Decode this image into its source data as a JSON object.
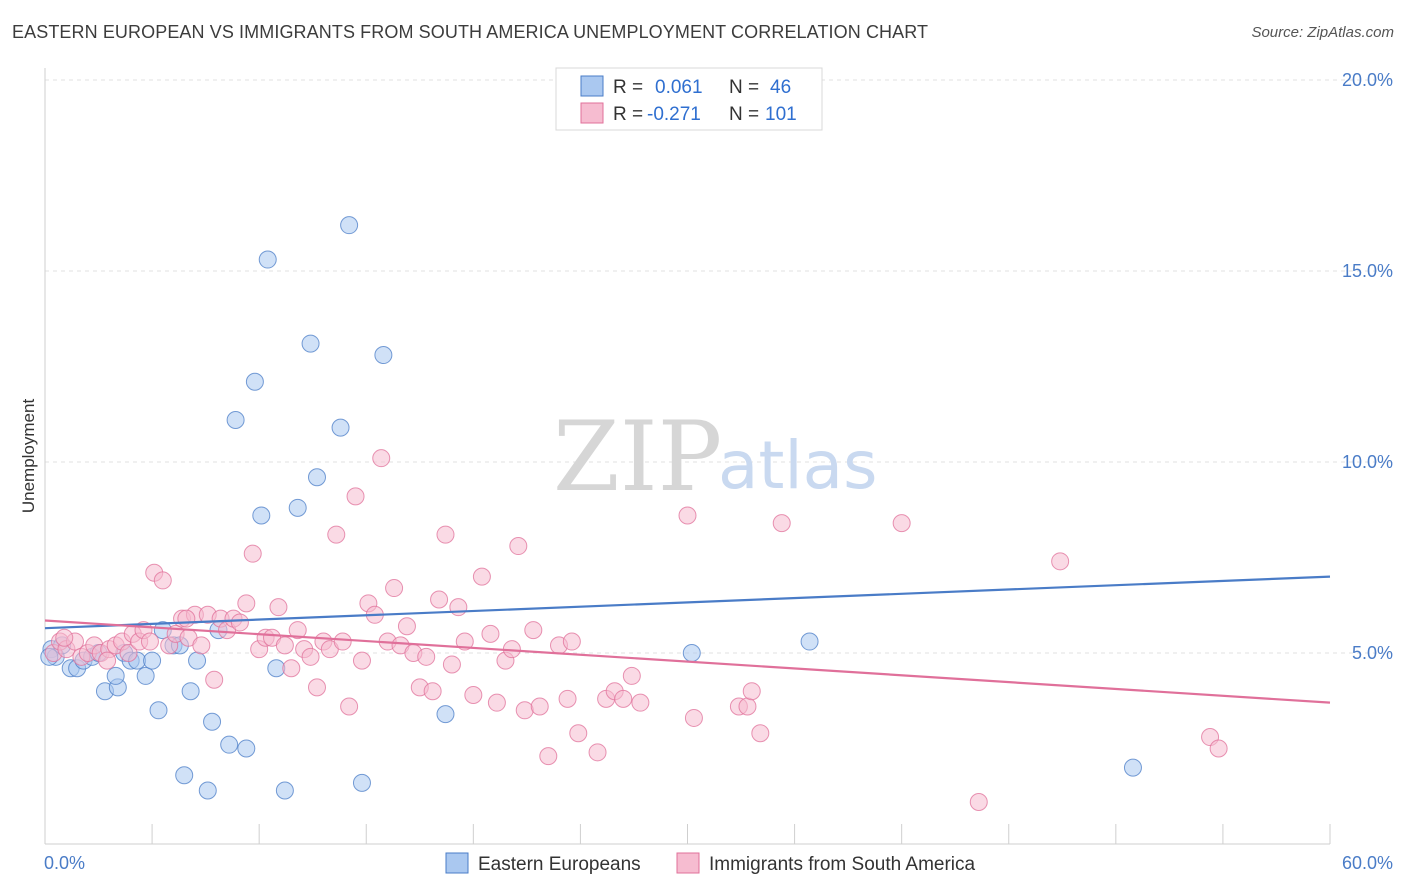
{
  "title": "EASTERN EUROPEAN VS IMMIGRANTS FROM SOUTH AMERICA UNEMPLOYMENT CORRELATION CHART",
  "source": "Source: ZipAtlas.com",
  "watermark": {
    "zip": "ZIP",
    "atlas": "atlas"
  },
  "colors": {
    "blue": "#4a7cc7",
    "blue_fill": "#aac8f0",
    "pink": "#e0709a",
    "pink_fill": "#f6bcd0",
    "grid": "#e2e2e2"
  },
  "legend": {
    "rows": [
      {
        "r_label": "R =",
        "r_value": "0.061",
        "n_label": "N =",
        "n_value": "46"
      },
      {
        "r_label": "R =",
        "r_value": "-0.271",
        "n_label": "N =",
        "n_value": "101"
      }
    ]
  },
  "chart_data": {
    "type": "scatter",
    "ylabel": "Unemployment",
    "xlim": [
      0,
      60
    ],
    "ylim": [
      0,
      20
    ],
    "x_tick_labels": [
      "0.0%",
      "60.0%"
    ],
    "y_ticks": [
      5,
      10,
      15,
      20
    ],
    "y_tick_labels": [
      "5.0%",
      "10.0%",
      "15.0%",
      "20.0%"
    ],
    "grid": true,
    "legend_position": "top-center",
    "series": [
      {
        "name": "Eastern Europeans",
        "color": "#4a7cc7",
        "trend": [
          [
            0,
            5.65
          ],
          [
            60,
            7.0
          ]
        ],
        "points": [
          [
            0.3,
            5.1
          ],
          [
            0.5,
            4.9
          ],
          [
            0.8,
            5.2
          ],
          [
            1.2,
            4.6
          ],
          [
            1.5,
            4.6
          ],
          [
            1.8,
            4.8
          ],
          [
            2.2,
            4.9
          ],
          [
            2.5,
            5.0
          ],
          [
            2.8,
            4.0
          ],
          [
            3.4,
            4.1
          ],
          [
            3.3,
            4.4
          ],
          [
            3.7,
            5.0
          ],
          [
            4.0,
            4.8
          ],
          [
            4.3,
            4.8
          ],
          [
            4.7,
            4.4
          ],
          [
            5.0,
            4.8
          ],
          [
            5.3,
            3.5
          ],
          [
            5.5,
            5.6
          ],
          [
            6.0,
            5.2
          ],
          [
            6.3,
            5.2
          ],
          [
            6.5,
            1.8
          ],
          [
            6.8,
            4.0
          ],
          [
            7.1,
            4.8
          ],
          [
            7.6,
            1.4
          ],
          [
            7.8,
            3.2
          ],
          [
            8.1,
            5.6
          ],
          [
            8.6,
            2.6
          ],
          [
            8.9,
            11.1
          ],
          [
            9.4,
            2.5
          ],
          [
            9.8,
            12.1
          ],
          [
            10.1,
            8.6
          ],
          [
            10.4,
            15.3
          ],
          [
            10.8,
            4.6
          ],
          [
            11.2,
            1.4
          ],
          [
            11.8,
            8.8
          ],
          [
            12.4,
            13.1
          ],
          [
            12.7,
            9.6
          ],
          [
            13.8,
            10.9
          ],
          [
            14.2,
            16.2
          ],
          [
            14.8,
            1.6
          ],
          [
            15.8,
            12.8
          ],
          [
            18.7,
            3.4
          ],
          [
            30.2,
            5.0
          ],
          [
            35.7,
            5.3
          ],
          [
            50.8,
            2.0
          ],
          [
            0.2,
            4.9
          ]
        ]
      },
      {
        "name": "Immigrants from South America",
        "color": "#e0709a",
        "trend": [
          [
            0,
            5.85
          ],
          [
            60,
            3.7
          ]
        ],
        "points": [
          [
            0.4,
            5.0
          ],
          [
            0.7,
            5.3
          ],
          [
            1.0,
            5.1
          ],
          [
            1.4,
            5.3
          ],
          [
            1.7,
            4.9
          ],
          [
            2.0,
            5.0
          ],
          [
            2.3,
            5.2
          ],
          [
            2.6,
            5.0
          ],
          [
            3.0,
            5.1
          ],
          [
            3.3,
            5.2
          ],
          [
            3.6,
            5.3
          ],
          [
            3.9,
            5.0
          ],
          [
            4.1,
            5.5
          ],
          [
            4.4,
            5.3
          ],
          [
            4.6,
            5.6
          ],
          [
            4.9,
            5.3
          ],
          [
            5.1,
            7.1
          ],
          [
            5.5,
            6.9
          ],
          [
            5.8,
            5.2
          ],
          [
            6.1,
            5.5
          ],
          [
            6.4,
            5.9
          ],
          [
            6.7,
            5.4
          ],
          [
            7.0,
            6.0
          ],
          [
            7.3,
            5.2
          ],
          [
            7.6,
            6.0
          ],
          [
            7.9,
            4.3
          ],
          [
            8.2,
            5.9
          ],
          [
            8.5,
            5.6
          ],
          [
            8.8,
            5.9
          ],
          [
            9.1,
            5.8
          ],
          [
            9.4,
            6.3
          ],
          [
            9.7,
            7.6
          ],
          [
            10.0,
            5.1
          ],
          [
            10.3,
            5.4
          ],
          [
            10.6,
            5.4
          ],
          [
            10.9,
            6.2
          ],
          [
            11.2,
            5.2
          ],
          [
            11.5,
            4.6
          ],
          [
            11.8,
            5.6
          ],
          [
            12.1,
            5.1
          ],
          [
            12.4,
            4.9
          ],
          [
            12.7,
            4.1
          ],
          [
            13.0,
            5.3
          ],
          [
            13.3,
            5.1
          ],
          [
            13.6,
            8.1
          ],
          [
            13.9,
            5.3
          ],
          [
            14.2,
            3.6
          ],
          [
            14.5,
            9.1
          ],
          [
            14.8,
            4.8
          ],
          [
            15.1,
            6.3
          ],
          [
            15.4,
            6.0
          ],
          [
            15.7,
            10.1
          ],
          [
            16.0,
            5.3
          ],
          [
            16.3,
            6.7
          ],
          [
            16.6,
            5.2
          ],
          [
            16.9,
            5.7
          ],
          [
            17.2,
            5.0
          ],
          [
            17.5,
            4.1
          ],
          [
            17.8,
            4.9
          ],
          [
            18.1,
            4.0
          ],
          [
            18.4,
            6.4
          ],
          [
            18.7,
            8.1
          ],
          [
            19.0,
            4.7
          ],
          [
            19.3,
            6.2
          ],
          [
            19.6,
            5.3
          ],
          [
            20.0,
            3.9
          ],
          [
            20.4,
            7.0
          ],
          [
            20.8,
            5.5
          ],
          [
            21.1,
            3.7
          ],
          [
            21.5,
            4.8
          ],
          [
            21.8,
            5.1
          ],
          [
            22.1,
            7.8
          ],
          [
            22.4,
            3.5
          ],
          [
            22.8,
            5.6
          ],
          [
            23.1,
            3.6
          ],
          [
            23.5,
            2.3
          ],
          [
            24.0,
            5.2
          ],
          [
            24.4,
            3.8
          ],
          [
            24.6,
            5.3
          ],
          [
            24.9,
            2.9
          ],
          [
            25.8,
            2.4
          ],
          [
            26.2,
            3.8
          ],
          [
            26.6,
            4.0
          ],
          [
            27.0,
            3.8
          ],
          [
            27.4,
            4.4
          ],
          [
            27.8,
            3.7
          ],
          [
            30.0,
            8.6
          ],
          [
            30.3,
            3.3
          ],
          [
            32.4,
            3.6
          ],
          [
            32.8,
            3.6
          ],
          [
            33.0,
            4.0
          ],
          [
            33.4,
            2.9
          ],
          [
            34.4,
            8.4
          ],
          [
            40.0,
            8.4
          ],
          [
            43.6,
            1.1
          ],
          [
            47.4,
            7.4
          ],
          [
            54.4,
            2.8
          ],
          [
            54.8,
            2.5
          ],
          [
            0.9,
            5.4
          ],
          [
            2.9,
            4.8
          ],
          [
            6.6,
            5.9
          ]
        ]
      }
    ]
  }
}
